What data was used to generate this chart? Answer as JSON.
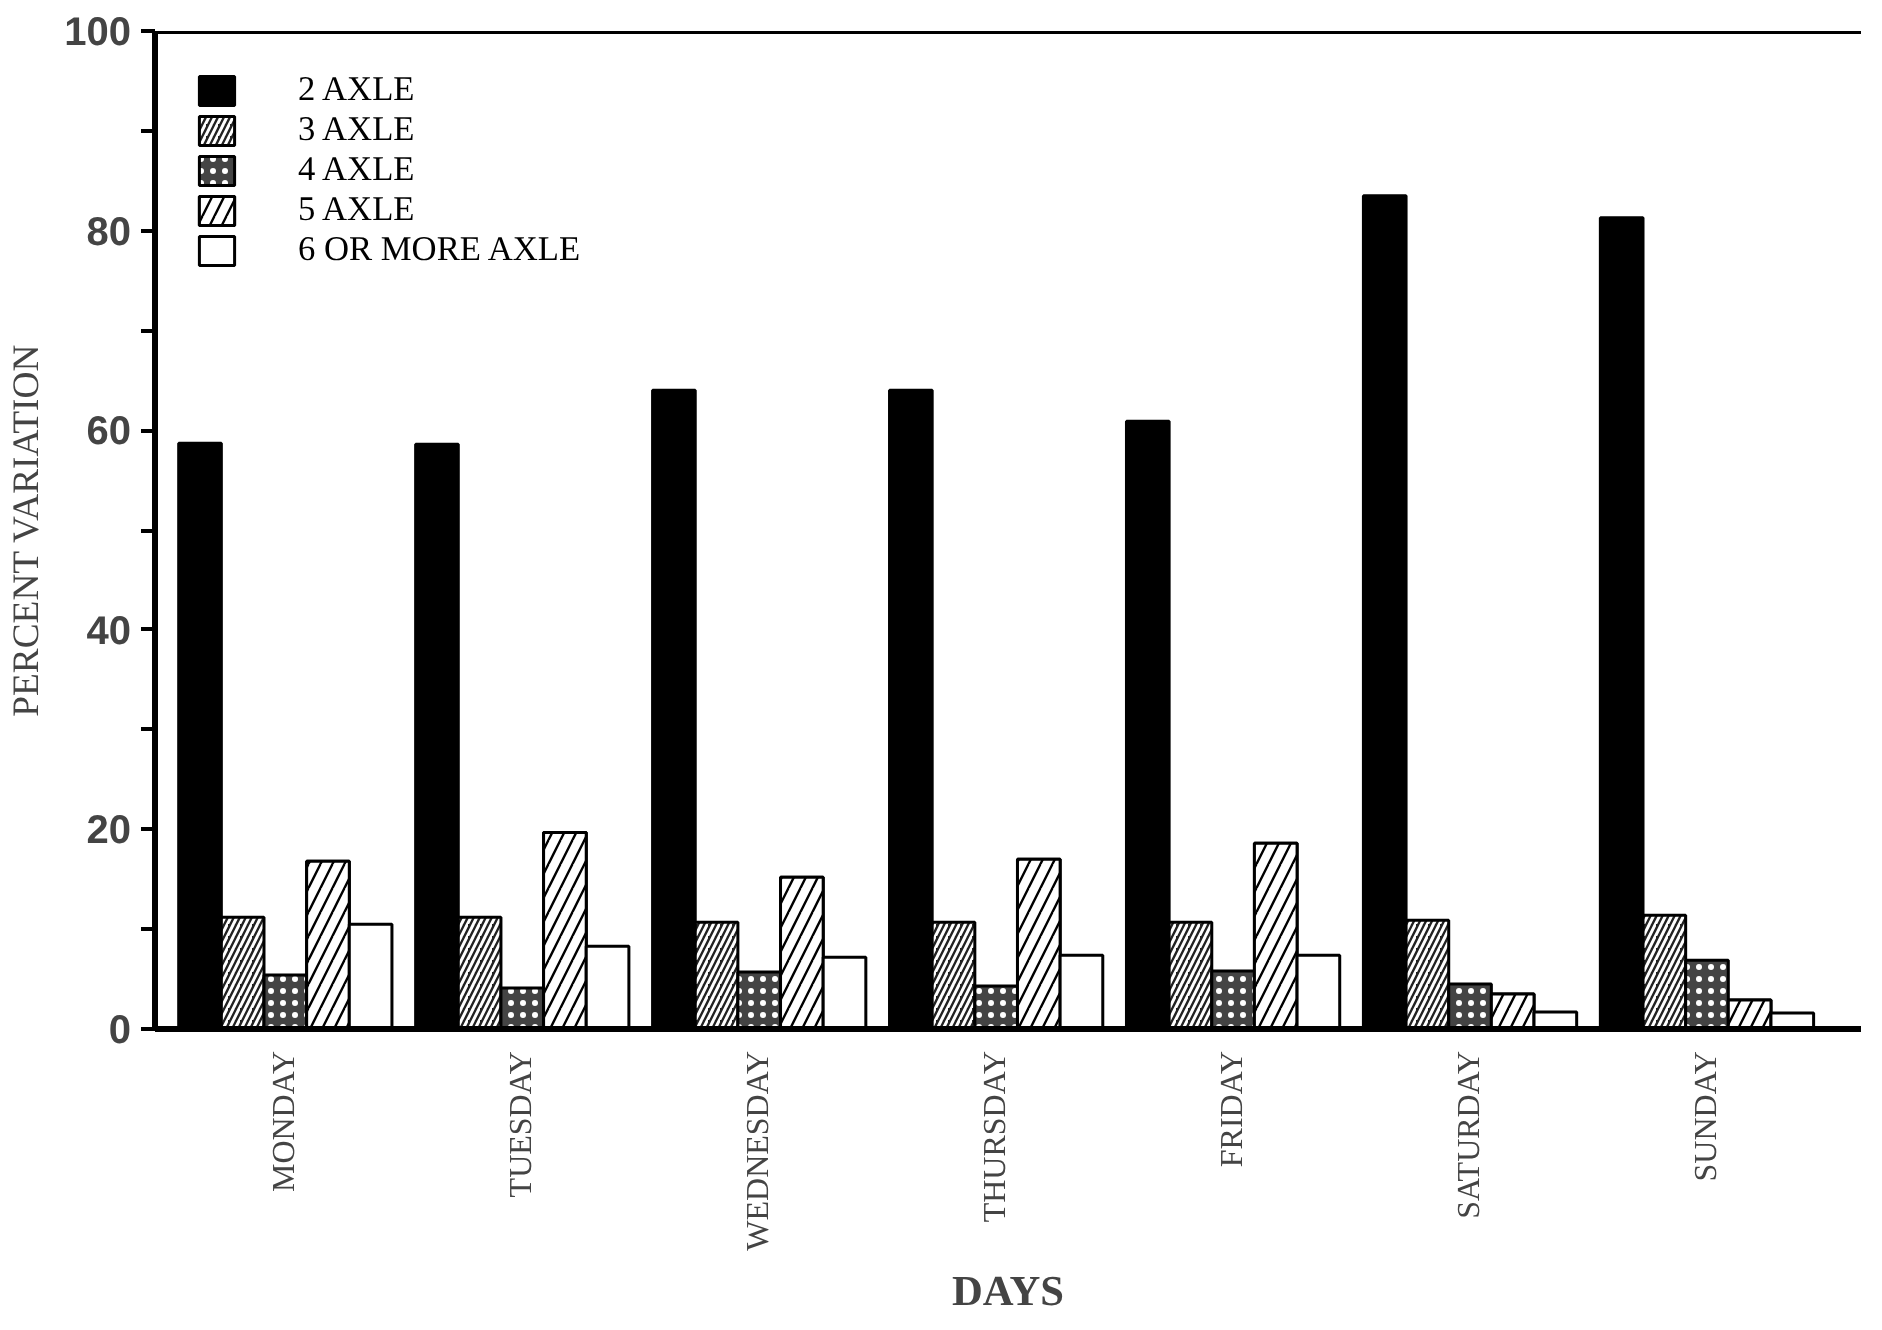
{
  "chart_data": {
    "type": "bar",
    "xlabel": "DAYS",
    "ylabel": "PERCENT VARIATION",
    "categories": [
      "MONDAY",
      "TUESDAY",
      "WEDNESDAY",
      "THURSDAY",
      "FRIDAY",
      "SATURDAY",
      "SUNDAY"
    ],
    "series": [
      {
        "name": "2 AXLE",
        "color": "#000000",
        "values": [
          58.7,
          58.6,
          64,
          64,
          60.9,
          83.5,
          81.3
        ]
      },
      {
        "name": "3 AXLE",
        "color": "#222222",
        "values": [
          11.2,
          11.2,
          10.7,
          10.7,
          10.7,
          10.9,
          11.4
        ]
      },
      {
        "name": "4 AXLE",
        "color": "#444444",
        "values": [
          5.4,
          4.1,
          5.7,
          4.3,
          5.8,
          4.5,
          6.9
        ]
      },
      {
        "name": "5 AXLE",
        "color": "#ffffff",
        "values": [
          16.8,
          19.7,
          15.2,
          17,
          18.6,
          3.5,
          2.9
        ]
      },
      {
        "name": "6 OR MORE AXLE",
        "color": "#ffffff",
        "values": [
          10.5,
          8.3,
          7.2,
          7.4,
          7.4,
          1.7,
          1.6
        ]
      }
    ],
    "ylim": [
      0,
      100
    ],
    "yticks": [
      0,
      {
        "value": 10,
        "label": null
      },
      20,
      {
        "value": 30,
        "label": null
      },
      40,
      {
        "value": 50,
        "label": null
      },
      60,
      {
        "value": 70,
        "label": null
      },
      80,
      {
        "value": 90,
        "label": null
      },
      100
    ],
    "grid": false,
    "legend": "top left"
  }
}
